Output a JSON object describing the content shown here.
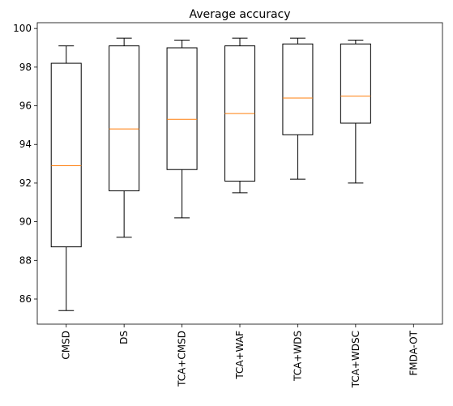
{
  "chart_data": {
    "type": "boxplot",
    "title": "Average accuracy",
    "xlabel": "",
    "ylabel": "",
    "ylim": [
      84.7,
      100.3
    ],
    "yticks": [
      86,
      88,
      90,
      92,
      94,
      96,
      98,
      100
    ],
    "categories": [
      "CMSD",
      "DS",
      "TCA+CMSD",
      "TCA+WAF",
      "TCA+WDS",
      "TCA+WDSC",
      "FMDA-OT"
    ],
    "boxes": [
      {
        "category": "CMSD",
        "whisker_low": 85.4,
        "q1": 88.7,
        "median": 92.9,
        "q3": 98.2,
        "whisker_high": 99.1
      },
      {
        "category": "DS",
        "whisker_low": 89.2,
        "q1": 91.6,
        "median": 94.8,
        "q3": 99.1,
        "whisker_high": 99.5
      },
      {
        "category": "TCA+CMSD",
        "whisker_low": 90.2,
        "q1": 92.7,
        "median": 95.3,
        "q3": 99.0,
        "whisker_high": 99.4
      },
      {
        "category": "TCA+WAF",
        "whisker_low": 91.5,
        "q1": 92.1,
        "median": 95.6,
        "q3": 99.1,
        "whisker_high": 99.5
      },
      {
        "category": "TCA+WDS",
        "whisker_low": 92.2,
        "q1": 94.5,
        "median": 96.4,
        "q3": 99.2,
        "whisker_high": 99.5
      },
      {
        "category": "TCA+WDSC",
        "whisker_low": 92.0,
        "q1": 95.1,
        "median": 96.5,
        "q3": 99.2,
        "whisker_high": 99.4
      },
      {
        "category": "FMDA-OT",
        "whisker_low": null,
        "q1": null,
        "median": null,
        "q3": null,
        "whisker_high": null
      }
    ],
    "colors": {
      "box": "#000000",
      "median": "#ff7f0e",
      "axes": "#000000"
    },
    "grid": false,
    "legend": "none"
  }
}
